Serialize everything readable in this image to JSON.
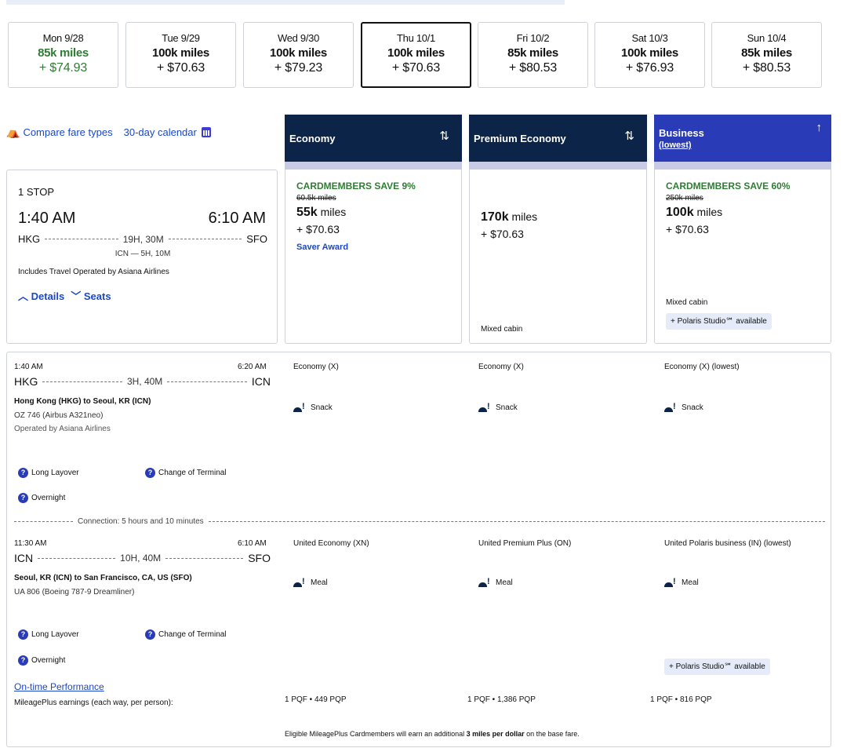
{
  "dates": [
    {
      "day": "Mon 9/28",
      "miles": "85k miles",
      "price": "+ $74.93",
      "green": true
    },
    {
      "day": "Tue 9/29",
      "miles": "100k miles",
      "price": "+ $70.63",
      "green": false
    },
    {
      "day": "Wed 9/30",
      "miles": "100k miles",
      "price": "+ $79.23",
      "green": false
    },
    {
      "day": "Thu 10/1",
      "miles": "100k miles",
      "price": "+ $70.63",
      "green": false
    },
    {
      "day": "Fri 10/2",
      "miles": "85k miles",
      "price": "+ $80.53",
      "green": false
    },
    {
      "day": "Sat 10/3",
      "miles": "100k miles",
      "price": "+ $76.93",
      "green": false
    },
    {
      "day": "Sun 10/4",
      "miles": "85k miles",
      "price": "+ $80.53",
      "green": false
    }
  ],
  "selected_date": "Thu 10/1",
  "links": {
    "compare": "Compare fare types",
    "calendar": "30-day calendar"
  },
  "cabins": {
    "economy": "Economy",
    "premium": "Premium Economy",
    "business": "Business",
    "business_sub": "(lowest)",
    "sort_icon": "⇅",
    "up_icon": "↑"
  },
  "summary": {
    "stops": "1 STOP",
    "depart": "1:40 AM",
    "arrive": "6:10 AM",
    "from": "HKG",
    "to": "SFO",
    "duration": "19H, 30M",
    "connection": "ICN — 5H, 10M",
    "includes": "Includes Travel Operated by Asiana Airlines",
    "details": "Details",
    "seats": "Seats"
  },
  "fares": {
    "economy": {
      "save": "CARDMEMBERS SAVE 9%",
      "orig": "60.5k miles",
      "miles_num": "55k",
      "miles_unit": "miles",
      "price": "+ $70.63",
      "saver": "Saver Award"
    },
    "premium": {
      "miles_num": "170k",
      "miles_unit": "miles",
      "price": "+ $70.63",
      "mixed": "Mixed cabin"
    },
    "business": {
      "save": "CARDMEMBERS SAVE 60%",
      "orig": "250k miles",
      "miles_num": "100k",
      "miles_unit": "miles",
      "price": "+ $70.63",
      "mixed": "Mixed cabin",
      "studio": "+ Polaris Studio℠ available"
    }
  },
  "segments": [
    {
      "dep_time": "1:40 AM",
      "arr_time": "6:20 AM",
      "from": "HKG",
      "to": "ICN",
      "duration": "3H, 40M",
      "route": "Hong Kong (HKG) to Seoul, KR (ICN)",
      "flight": "OZ 746 (Airbus A321neo)",
      "operated": "Operated by Asiana Airlines",
      "cabin_econ": "Economy (X)",
      "cabin_prem": "Economy (X)",
      "cabin_biz": "Economy (X) (lowest)",
      "meal": "Snack"
    },
    {
      "dep_time": "11:30 AM",
      "arr_time": "6:10 AM",
      "from": "ICN",
      "to": "SFO",
      "duration": "10H, 40M",
      "route": "Seoul, KR (ICN) to San Francisco, CA, US (SFO)",
      "flight": "UA 806 (Boeing 787-9 Dreamliner)",
      "cabin_econ": "United Economy (XN)",
      "cabin_prem": "United Premium Plus (ON)",
      "cabin_biz": "United Polaris business (IN) (lowest)",
      "meal": "Meal"
    }
  ],
  "warnings": {
    "long_layover": "Long Layover",
    "change_terminal": "Change of Terminal",
    "overnight": "Overnight"
  },
  "connection_text": "Connection: 5 hours and 10 minutes",
  "ontime": "On-time Performance",
  "earnings_label": "MileagePlus earnings (each way, per person):",
  "earnings": {
    "economy": "1 PQF • 449 PQP",
    "premium": "1 PQF • 1,386 PQP",
    "business": "1 PQF • 816 PQP"
  },
  "eligible": {
    "pre": "Eligible MileagePlus Cardmembers will earn an additional ",
    "bold": "3 miles per dollar",
    "post": " on the base fare."
  },
  "studio2": "+ Polaris Studio℠ available"
}
